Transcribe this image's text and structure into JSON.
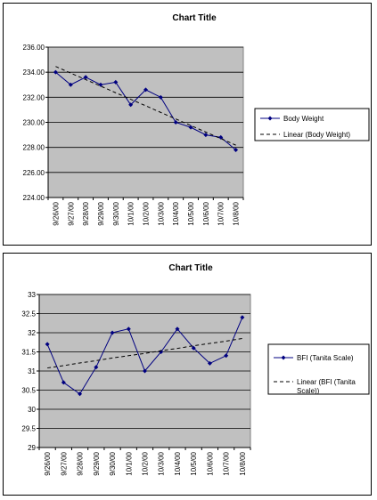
{
  "chart_data": [
    {
      "type": "line",
      "title": "Chart Title",
      "categories": [
        "9/26/00",
        "9/27/00",
        "9/28/00",
        "9/29/00",
        "9/30/00",
        "10/1/00",
        "10/2/00",
        "10/3/00",
        "10/4/00",
        "10/5/00",
        "10/6/00",
        "10/7/00",
        "10/8/00"
      ],
      "series": [
        {
          "name": "Body Weight",
          "values": [
            234.0,
            233.0,
            233.6,
            233.0,
            233.2,
            231.4,
            232.6,
            232.0,
            230.0,
            229.6,
            229.0,
            228.8,
            227.8
          ],
          "color": "#000080",
          "style": "solid-marker"
        },
        {
          "name": "Linear (Body Weight)",
          "values": [
            234.46,
            233.93,
            233.41,
            232.89,
            232.36,
            231.84,
            231.32,
            230.79,
            230.27,
            229.75,
            229.22,
            228.7,
            228.18
          ],
          "color": "#000000",
          "style": "dashed"
        }
      ],
      "yticks": [
        "224.00",
        "226.00",
        "228.00",
        "230.00",
        "232.00",
        "234.00",
        "236.00"
      ],
      "ylim": [
        224,
        236
      ],
      "plot_bg": "#c0c0c0",
      "grid": true,
      "legend_position": "right"
    },
    {
      "type": "line",
      "title": "Chart Title",
      "categories": [
        "9/26/00",
        "9/27/00",
        "9/28/00",
        "9/29/00",
        "9/30/00",
        "10/1/00",
        "10/2/00",
        "10/3/00",
        "10/4/00",
        "10/5/00",
        "10/6/00",
        "10/7/00",
        "10/8/00"
      ],
      "series": [
        {
          "name": "BFI (Tanita Scale)",
          "values": [
            31.7,
            30.7,
            30.4,
            31.1,
            32.0,
            32.1,
            31.0,
            31.5,
            32.1,
            31.6,
            31.2,
            31.4,
            32.4
          ],
          "color": "#000080",
          "style": "solid-marker"
        },
        {
          "name": "Linear (BFI (Tanita Scale))",
          "values": [
            31.08,
            31.14,
            31.21,
            31.27,
            31.34,
            31.4,
            31.46,
            31.53,
            31.59,
            31.66,
            31.72,
            31.78,
            31.85
          ],
          "color": "#000000",
          "style": "dashed"
        }
      ],
      "yticks": [
        "29",
        "29.5",
        "30",
        "30.5",
        "31",
        "31.5",
        "32",
        "32.5",
        "33"
      ],
      "ylim": [
        29,
        33
      ],
      "plot_bg": "#c0c0c0",
      "grid": true,
      "legend_position": "right"
    }
  ]
}
